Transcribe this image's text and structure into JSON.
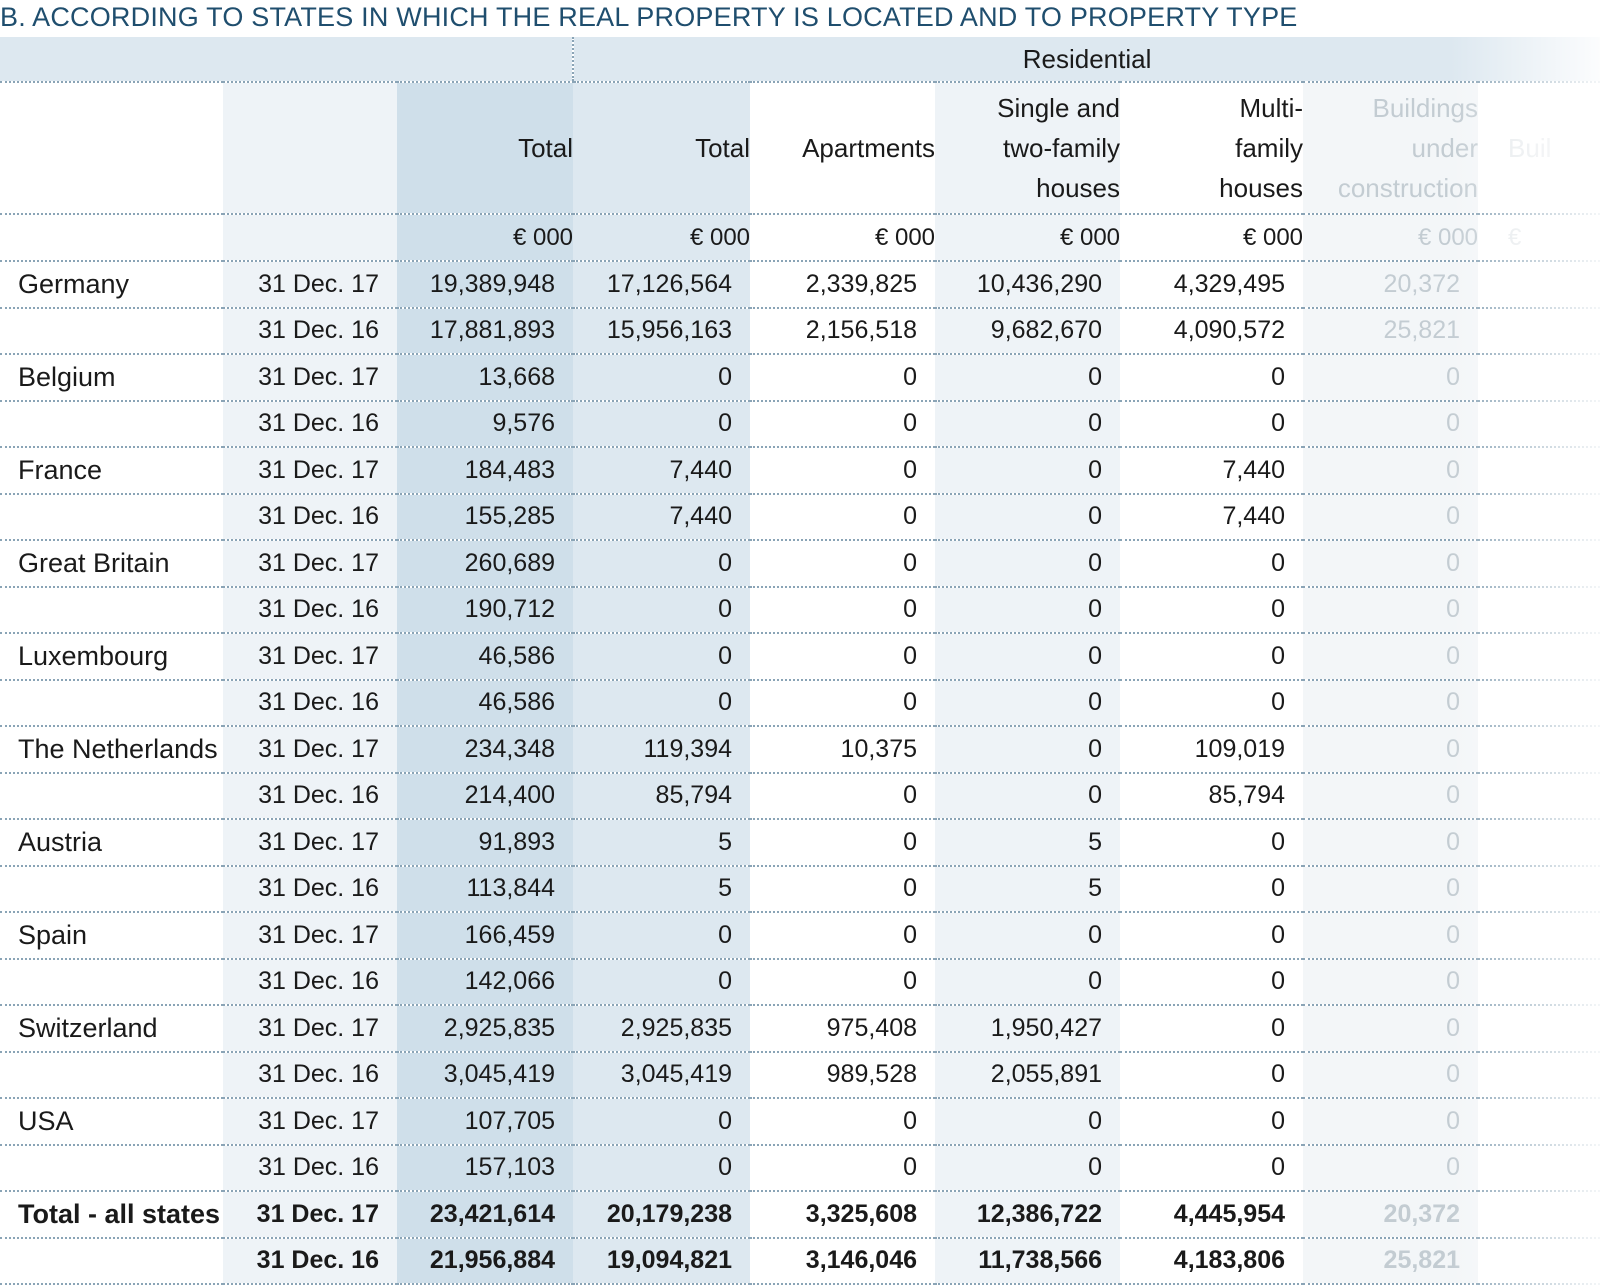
{
  "title": "B. ACCORDING TO STATES IN WHICH THE REAL PROPERTY IS LOCATED AND TO PROPERTY TYPE",
  "group_header": "Residential",
  "columns": {
    "total": "Total",
    "res_total": "Total",
    "apartments": "Apartments",
    "single_l1": "Single and",
    "single_l2": "two-family",
    "single_l3": "houses",
    "multi_l1": "Multi-",
    "multi_l2": "family",
    "multi_l3": "houses",
    "buc_l1": "Buildings",
    "buc_l2": "under",
    "buc_l3": "construction",
    "cut": "Buil"
  },
  "units": {
    "total": "€ 000",
    "res_total": "€ 000",
    "apartments": "€ 000",
    "single": "€ 000",
    "multi": "€ 000",
    "buc": "€ 000",
    "cut": "€"
  },
  "rows": [
    {
      "state": "Germany",
      "date": "31 Dec. 17",
      "total": "19,389,948",
      "res_total": "17,126,564",
      "apartments": "2,339,825",
      "single": "10,436,290",
      "multi": "4,329,495",
      "buc": "20,372"
    },
    {
      "state": "",
      "date": "31 Dec. 16",
      "total": "17,881,893",
      "res_total": "15,956,163",
      "apartments": "2,156,518",
      "single": "9,682,670",
      "multi": "4,090,572",
      "buc": "25,821"
    },
    {
      "state": "Belgium",
      "date": "31 Dec. 17",
      "total": "13,668",
      "res_total": "0",
      "apartments": "0",
      "single": "0",
      "multi": "0",
      "buc": "0"
    },
    {
      "state": "",
      "date": "31 Dec. 16",
      "total": "9,576",
      "res_total": "0",
      "apartments": "0",
      "single": "0",
      "multi": "0",
      "buc": "0"
    },
    {
      "state": "France",
      "date": "31 Dec. 17",
      "total": "184,483",
      "res_total": "7,440",
      "apartments": "0",
      "single": "0",
      "multi": "7,440",
      "buc": "0"
    },
    {
      "state": "",
      "date": "31 Dec. 16",
      "total": "155,285",
      "res_total": "7,440",
      "apartments": "0",
      "single": "0",
      "multi": "7,440",
      "buc": "0"
    },
    {
      "state": "Great Britain",
      "date": "31 Dec. 17",
      "total": "260,689",
      "res_total": "0",
      "apartments": "0",
      "single": "0",
      "multi": "0",
      "buc": "0"
    },
    {
      "state": "",
      "date": "31 Dec. 16",
      "total": "190,712",
      "res_total": "0",
      "apartments": "0",
      "single": "0",
      "multi": "0",
      "buc": "0"
    },
    {
      "state": "Luxembourg",
      "date": "31 Dec. 17",
      "total": "46,586",
      "res_total": "0",
      "apartments": "0",
      "single": "0",
      "multi": "0",
      "buc": "0"
    },
    {
      "state": "",
      "date": "31 Dec. 16",
      "total": "46,586",
      "res_total": "0",
      "apartments": "0",
      "single": "0",
      "multi": "0",
      "buc": "0"
    },
    {
      "state": "The Netherlands",
      "date": "31 Dec. 17",
      "total": "234,348",
      "res_total": "119,394",
      "apartments": "10,375",
      "single": "0",
      "multi": "109,019",
      "buc": "0"
    },
    {
      "state": "",
      "date": "31 Dec. 16",
      "total": "214,400",
      "res_total": "85,794",
      "apartments": "0",
      "single": "0",
      "multi": "85,794",
      "buc": "0"
    },
    {
      "state": "Austria",
      "date": "31 Dec. 17",
      "total": "91,893",
      "res_total": "5",
      "apartments": "0",
      "single": "5",
      "multi": "0",
      "buc": "0"
    },
    {
      "state": "",
      "date": "31 Dec. 16",
      "total": "113,844",
      "res_total": "5",
      "apartments": "0",
      "single": "5",
      "multi": "0",
      "buc": "0"
    },
    {
      "state": "Spain",
      "date": "31 Dec. 17",
      "total": "166,459",
      "res_total": "0",
      "apartments": "0",
      "single": "0",
      "multi": "0",
      "buc": "0"
    },
    {
      "state": "",
      "date": "31 Dec. 16",
      "total": "142,066",
      "res_total": "0",
      "apartments": "0",
      "single": "0",
      "multi": "0",
      "buc": "0"
    },
    {
      "state": "Switzerland",
      "date": "31 Dec. 17",
      "total": "2,925,835",
      "res_total": "2,925,835",
      "apartments": "975,408",
      "single": "1,950,427",
      "multi": "0",
      "buc": "0"
    },
    {
      "state": "",
      "date": "31 Dec. 16",
      "total": "3,045,419",
      "res_total": "3,045,419",
      "apartments": "989,528",
      "single": "2,055,891",
      "multi": "0",
      "buc": "0"
    },
    {
      "state": "USA",
      "date": "31 Dec. 17",
      "total": "107,705",
      "res_total": "0",
      "apartments": "0",
      "single": "0",
      "multi": "0",
      "buc": "0"
    },
    {
      "state": "",
      "date": "31 Dec. 16",
      "total": "157,103",
      "res_total": "0",
      "apartments": "0",
      "single": "0",
      "multi": "0",
      "buc": "0"
    },
    {
      "state": "Total - all states",
      "date": "31 Dec. 17",
      "total": "23,421,614",
      "res_total": "20,179,238",
      "apartments": "3,325,608",
      "single": "12,386,722",
      "multi": "4,445,954",
      "buc": "20,372",
      "bold": true
    },
    {
      "state": "",
      "date": "31 Dec. 16",
      "total": "21,956,884",
      "res_total": "19,094,821",
      "apartments": "3,146,046",
      "single": "11,738,566",
      "multi": "4,183,806",
      "buc": "25,821",
      "bold": true
    }
  ]
}
